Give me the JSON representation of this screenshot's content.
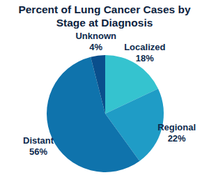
{
  "chart_data": {
    "type": "pie",
    "title": "Percent of Lung Cancer Cases by Stage at Diagnosis",
    "categories": [
      "Localized",
      "Regional",
      "Distant",
      "Unknown"
    ],
    "values": [
      18,
      22,
      56,
      4
    ],
    "value_labels": [
      "18%",
      "22%",
      "56%",
      "4%"
    ],
    "colors": [
      "#35c3cf",
      "#1f9cc6",
      "#0f73ac",
      "#0a4f8c"
    ],
    "data_labels": true
  }
}
